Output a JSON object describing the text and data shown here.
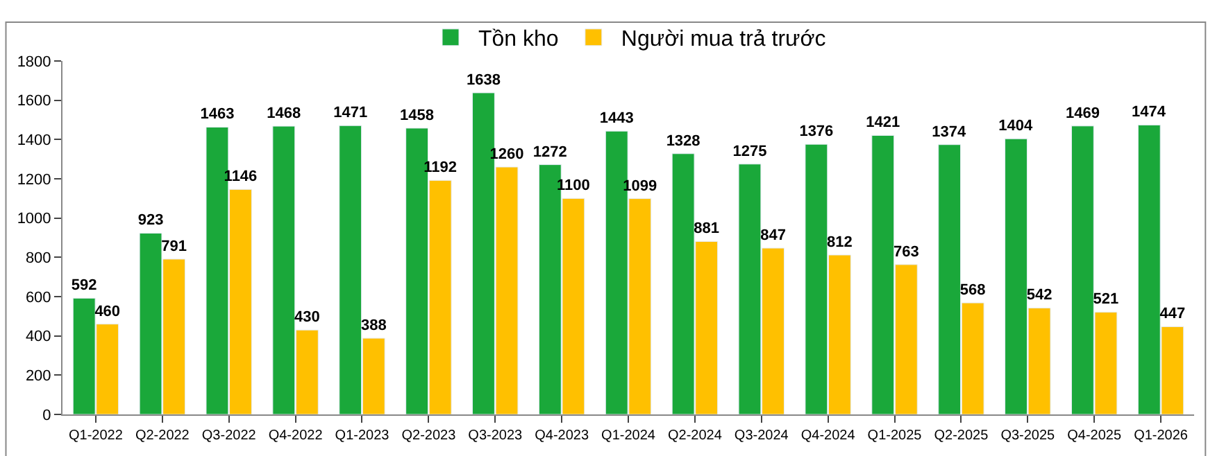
{
  "chart_data": {
    "type": "bar",
    "categories": [
      "Q1-2022",
      "Q2-2022",
      "Q3-2022",
      "Q4-2022",
      "Q1-2023",
      "Q2-2023",
      "Q3-2023",
      "Q4-2023",
      "Q1-2024",
      "Q2-2024",
      "Q3-2024",
      "Q4-2024",
      "Q1-2025",
      "Q2-2025",
      "Q3-2025",
      "Q4-2025",
      "Q1-2026"
    ],
    "series": [
      {
        "name": "Tồn kho",
        "color": "#1aa83a",
        "values": [
          592,
          923,
          1463,
          1468,
          1471,
          1458,
          1638,
          1272,
          1443,
          1328,
          1275,
          1376,
          1421,
          1374,
          1404,
          1469,
          1474
        ]
      },
      {
        "name": "Người mua trả trước",
        "color": "#ffc000",
        "values": [
          460,
          791,
          1146,
          430,
          388,
          1192,
          1260,
          1100,
          1099,
          881,
          847,
          812,
          763,
          568,
          542,
          521,
          447
        ]
      }
    ],
    "ylim": [
      0,
      1800
    ],
    "yticks": [
      0,
      200,
      400,
      600,
      800,
      1000,
      1200,
      1400,
      1600,
      1800
    ],
    "legend": "top",
    "data_labels": true
  }
}
